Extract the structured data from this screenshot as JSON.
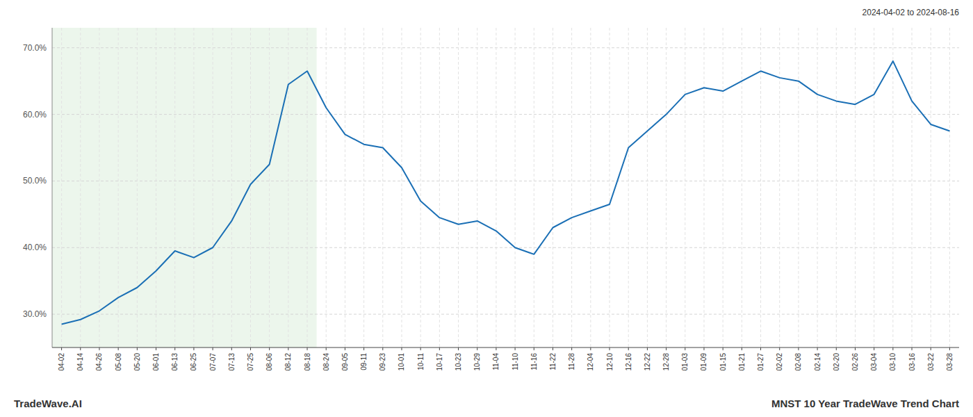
{
  "chart_data": {
    "type": "line",
    "title": "MNST 10 Year TradeWave Trend Chart",
    "subtitle": "2024-04-02 to 2024-08-16",
    "annotations": [
      "TradeWave.AI"
    ],
    "categories": [
      "04-02",
      "04-14",
      "04-26",
      "05-08",
      "05-20",
      "06-01",
      "06-13",
      "06-25",
      "07-07",
      "07-13",
      "07-25",
      "08-06",
      "08-12",
      "08-18",
      "08-24",
      "09-05",
      "09-11",
      "09-23",
      "10-01",
      "10-11",
      "10-17",
      "10-23",
      "10-29",
      "11-04",
      "11-10",
      "11-16",
      "11-22",
      "11-28",
      "12-04",
      "12-10",
      "12-16",
      "12-22",
      "12-28",
      "01-03",
      "01-09",
      "01-15",
      "01-21",
      "01-27",
      "02-02",
      "02-08",
      "02-14",
      "02-20",
      "02-26",
      "03-04",
      "03-10",
      "03-16",
      "03-22",
      "03-28"
    ],
    "values": [
      28.5,
      29.2,
      30.5,
      32.5,
      34.0,
      36.5,
      39.5,
      38.5,
      40.0,
      44.0,
      49.5,
      52.5,
      64.5,
      66.5,
      61.0,
      57.0,
      55.5,
      55.0,
      52.0,
      47.0,
      44.5,
      43.5,
      44.0,
      42.5,
      40.0,
      39.0,
      43.0,
      44.5,
      45.5,
      46.5,
      55.0,
      57.5,
      60.0,
      63.0,
      64.0,
      63.5,
      65.0,
      66.5,
      65.5,
      65.0,
      63.0,
      62.0,
      61.5,
      63.0,
      68.0,
      62.0,
      58.5,
      57.5
    ],
    "color": "#1a6fb5",
    "shade": {
      "from": "04-02",
      "to": "08-18",
      "color": "#c8e6c9"
    },
    "ylim": [
      25.0,
      73.0
    ],
    "yticks": [
      {
        "value": 30.0,
        "label": "30.0%"
      },
      {
        "value": 40.0,
        "label": "40.0%"
      },
      {
        "value": 50.0,
        "label": "50.0%"
      },
      {
        "value": 60.0,
        "label": "60.0%"
      },
      {
        "value": 70.0,
        "label": "70.0%"
      }
    ],
    "grid": true
  }
}
